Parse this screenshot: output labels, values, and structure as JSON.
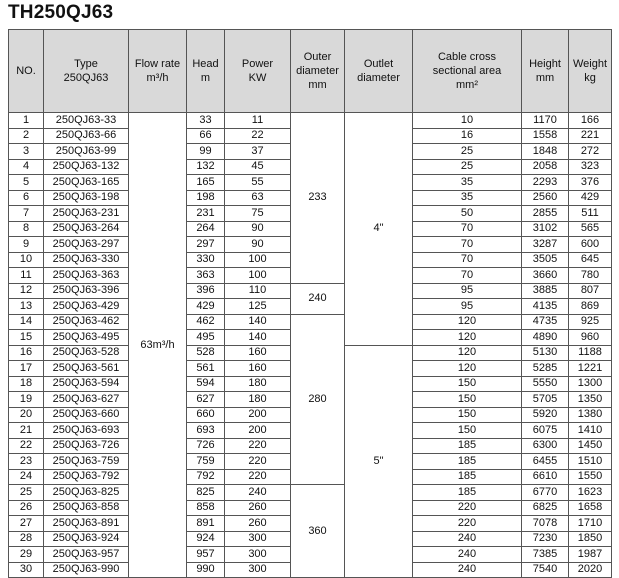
{
  "title": "TH250QJ63",
  "headers": {
    "no": "NO.",
    "type_l1": "Type",
    "type_l2": "250QJ63",
    "flow_l1": "Flow rate",
    "flow_l2": "m³/h",
    "head_l1": "Head",
    "head_l2": "m",
    "power_l1": "Power",
    "power_l2": "KW",
    "outer_l1": "Outer",
    "outer_l2": "diameter",
    "outer_l3": "mm",
    "outlet_l1": "Outlet",
    "outlet_l2": "diameter",
    "cable_l1": "Cable cross",
    "cable_l2": "sectional area",
    "cable_l3": "mm²",
    "height_l1": "Height",
    "height_l2": "mm",
    "weight_l1": "Weight",
    "weight_l2": "kg"
  },
  "flow_rate": "63m³/h",
  "outer_diameter_groups": [
    {
      "value": "233",
      "rows": 11
    },
    {
      "value": "240",
      "rows": 2
    },
    {
      "value": "280",
      "rows": 11
    },
    {
      "value": "360",
      "rows": 6
    }
  ],
  "outlet_diameter_groups": [
    {
      "value": "4\"",
      "rows": 15
    },
    {
      "value": "5\"",
      "rows": 15
    }
  ],
  "rows": [
    {
      "no": "1",
      "type": "250QJ63-33",
      "head": "33",
      "power": "11",
      "cable": "10",
      "height": "1170",
      "weight": "166"
    },
    {
      "no": "2",
      "type": "250QJ63-66",
      "head": "66",
      "power": "22",
      "cable": "16",
      "height": "1558",
      "weight": "221"
    },
    {
      "no": "3",
      "type": "250QJ63-99",
      "head": "99",
      "power": "37",
      "cable": "25",
      "height": "1848",
      "weight": "272"
    },
    {
      "no": "4",
      "type": "250QJ63-132",
      "head": "132",
      "power": "45",
      "cable": "25",
      "height": "2058",
      "weight": "323"
    },
    {
      "no": "5",
      "type": "250QJ63-165",
      "head": "165",
      "power": "55",
      "cable": "35",
      "height": "2293",
      "weight": "376"
    },
    {
      "no": "6",
      "type": "250QJ63-198",
      "head": "198",
      "power": "63",
      "cable": "35",
      "height": "2560",
      "weight": "429"
    },
    {
      "no": "7",
      "type": "250QJ63-231",
      "head": "231",
      "power": "75",
      "cable": "50",
      "height": "2855",
      "weight": "511"
    },
    {
      "no": "8",
      "type": "250QJ63-264",
      "head": "264",
      "power": "90",
      "cable": "70",
      "height": "3102",
      "weight": "565"
    },
    {
      "no": "9",
      "type": "250QJ63-297",
      "head": "297",
      "power": "90",
      "cable": "70",
      "height": "3287",
      "weight": "600"
    },
    {
      "no": "10",
      "type": "250QJ63-330",
      "head": "330",
      "power": "100",
      "cable": "70",
      "height": "3505",
      "weight": "645"
    },
    {
      "no": "11",
      "type": "250QJ63-363",
      "head": "363",
      "power": "100",
      "cable": "70",
      "height": "3660",
      "weight": "780"
    },
    {
      "no": "12",
      "type": "250QJ63-396",
      "head": "396",
      "power": "110",
      "cable": "95",
      "height": "3885",
      "weight": "807"
    },
    {
      "no": "13",
      "type": "250QJ63-429",
      "head": "429",
      "power": "125",
      "cable": "95",
      "height": "4135",
      "weight": "869"
    },
    {
      "no": "14",
      "type": "250QJ63-462",
      "head": "462",
      "power": "140",
      "cable": "120",
      "height": "4735",
      "weight": "925"
    },
    {
      "no": "15",
      "type": "250QJ63-495",
      "head": "495",
      "power": "140",
      "cable": "120",
      "height": "4890",
      "weight": "960"
    },
    {
      "no": "16",
      "type": "250QJ63-528",
      "head": "528",
      "power": "160",
      "cable": "120",
      "height": "5130",
      "weight": "1188"
    },
    {
      "no": "17",
      "type": "250QJ63-561",
      "head": "561",
      "power": "160",
      "cable": "120",
      "height": "5285",
      "weight": "1221"
    },
    {
      "no": "18",
      "type": "250QJ63-594",
      "head": "594",
      "power": "180",
      "cable": "150",
      "height": "5550",
      "weight": "1300"
    },
    {
      "no": "19",
      "type": "250QJ63-627",
      "head": "627",
      "power": "180",
      "cable": "150",
      "height": "5705",
      "weight": "1350"
    },
    {
      "no": "20",
      "type": "250QJ63-660",
      "head": "660",
      "power": "200",
      "cable": "150",
      "height": "5920",
      "weight": "1380"
    },
    {
      "no": "21",
      "type": "250QJ63-693",
      "head": "693",
      "power": "200",
      "cable": "150",
      "height": "6075",
      "weight": "1410"
    },
    {
      "no": "22",
      "type": "250QJ63-726",
      "head": "726",
      "power": "220",
      "cable": "185",
      "height": "6300",
      "weight": "1450"
    },
    {
      "no": "23",
      "type": "250QJ63-759",
      "head": "759",
      "power": "220",
      "cable": "185",
      "height": "6455",
      "weight": "1510"
    },
    {
      "no": "24",
      "type": "250QJ63-792",
      "head": "792",
      "power": "220",
      "cable": "185",
      "height": "6610",
      "weight": "1550"
    },
    {
      "no": "25",
      "type": "250QJ63-825",
      "head": "825",
      "power": "240",
      "cable": "185",
      "height": "6770",
      "weight": "1623"
    },
    {
      "no": "26",
      "type": "250QJ63-858",
      "head": "858",
      "power": "260",
      "cable": "220",
      "height": "6825",
      "weight": "1658"
    },
    {
      "no": "27",
      "type": "250QJ63-891",
      "head": "891",
      "power": "260",
      "cable": "220",
      "height": "7078",
      "weight": "1710"
    },
    {
      "no": "28",
      "type": "250QJ63-924",
      "head": "924",
      "power": "300",
      "cable": "240",
      "height": "7230",
      "weight": "1850"
    },
    {
      "no": "29",
      "type": "250QJ63-957",
      "head": "957",
      "power": "300",
      "cable": "240",
      "height": "7385",
      "weight": "1987"
    },
    {
      "no": "30",
      "type": "250QJ63-990",
      "head": "990",
      "power": "300",
      "cable": "240",
      "height": "7540",
      "weight": "2020"
    }
  ]
}
